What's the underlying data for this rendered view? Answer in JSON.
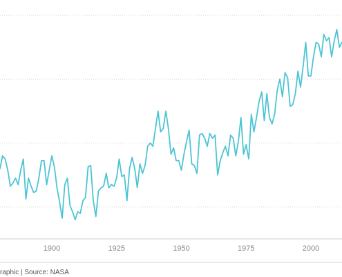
{
  "footer": {
    "source_text": "raphic | Source: NASA"
  },
  "colors": {
    "line": "#4dc4d4",
    "grid": "#d6d6d6",
    "tick_text": "#888888"
  },
  "chart_data": {
    "type": "line",
    "title": "",
    "xlabel": "",
    "ylabel": "",
    "x_tick_labels": [
      "1900",
      "1925",
      "1950",
      "1975",
      "2000"
    ],
    "xlim": [
      1880,
      2012
    ],
    "ylim": [
      -0.6,
      0.8
    ],
    "grid": {
      "y": true,
      "x": false
    },
    "series": [
      {
        "x": [
          1880,
          1881,
          1882,
          1883,
          1884,
          1885,
          1886,
          1887,
          1888,
          1889,
          1890,
          1891,
          1892,
          1893,
          1894,
          1895,
          1896,
          1897,
          1898,
          1899,
          1900,
          1901,
          1902,
          1903,
          1904,
          1905,
          1906,
          1907,
          1908,
          1909,
          1910,
          1911,
          1912,
          1913,
          1914,
          1915,
          1916,
          1917,
          1918,
          1919,
          1920,
          1921,
          1922,
          1923,
          1924,
          1925,
          1926,
          1927,
          1928,
          1929,
          1930,
          1931,
          1932,
          1933,
          1934,
          1935,
          1936,
          1937,
          1938,
          1939,
          1940,
          1941,
          1942,
          1943,
          1944,
          1945,
          1946,
          1947,
          1948,
          1949,
          1950,
          1951,
          1952,
          1953,
          1954,
          1955,
          1956,
          1957,
          1958,
          1959,
          1960,
          1961,
          1962,
          1963,
          1964,
          1965,
          1966,
          1967,
          1968,
          1969,
          1970,
          1971,
          1972,
          1973,
          1974,
          1975,
          1976,
          1977,
          1978,
          1979,
          1980,
          1981,
          1982,
          1983,
          1984,
          1985,
          1986,
          1987,
          1988,
          1989,
          1990,
          1991,
          1992,
          1993,
          1994,
          1995,
          1996,
          1997,
          1998,
          1999,
          2000,
          2001,
          2002,
          2003,
          2004,
          2005,
          2006,
          2007,
          2008,
          2009,
          2010,
          2011,
          2012
        ],
        "values": [
          -0.16,
          -0.08,
          -0.1,
          -0.17,
          -0.27,
          -0.25,
          -0.22,
          -0.26,
          -0.17,
          -0.1,
          -0.35,
          -0.22,
          -0.27,
          -0.31,
          -0.3,
          -0.22,
          -0.11,
          -0.11,
          -0.26,
          -0.17,
          -0.08,
          -0.15,
          -0.28,
          -0.37,
          -0.47,
          -0.26,
          -0.22,
          -0.39,
          -0.43,
          -0.48,
          -0.43,
          -0.44,
          -0.36,
          -0.34,
          -0.15,
          -0.14,
          -0.36,
          -0.46,
          -0.3,
          -0.28,
          -0.27,
          -0.19,
          -0.28,
          -0.26,
          -0.27,
          -0.22,
          -0.1,
          -0.21,
          -0.2,
          -0.36,
          -0.16,
          -0.09,
          -0.16,
          -0.28,
          -0.13,
          -0.19,
          -0.14,
          -0.02,
          -0.0,
          -0.02,
          0.09,
          0.2,
          0.07,
          0.09,
          0.2,
          0.09,
          -0.07,
          -0.03,
          -0.11,
          -0.11,
          -0.17,
          -0.07,
          0.01,
          0.08,
          -0.13,
          -0.14,
          -0.19,
          0.05,
          0.06,
          0.03,
          -0.02,
          0.06,
          0.03,
          0.05,
          -0.2,
          -0.11,
          -0.06,
          -0.02,
          -0.08,
          0.05,
          0.03,
          -0.08,
          0.01,
          0.16,
          -0.07,
          -0.01,
          -0.1,
          0.18,
          0.07,
          0.16,
          0.26,
          0.32,
          0.14,
          0.31,
          0.16,
          0.12,
          0.18,
          0.33,
          0.4,
          0.29,
          0.44,
          0.41,
          0.23,
          0.24,
          0.31,
          0.45,
          0.35,
          0.48,
          0.63,
          0.42,
          0.42,
          0.54,
          0.63,
          0.62,
          0.54,
          0.68,
          0.64,
          0.66,
          0.54,
          0.64,
          0.71,
          0.6,
          0.63
        ]
      }
    ]
  }
}
